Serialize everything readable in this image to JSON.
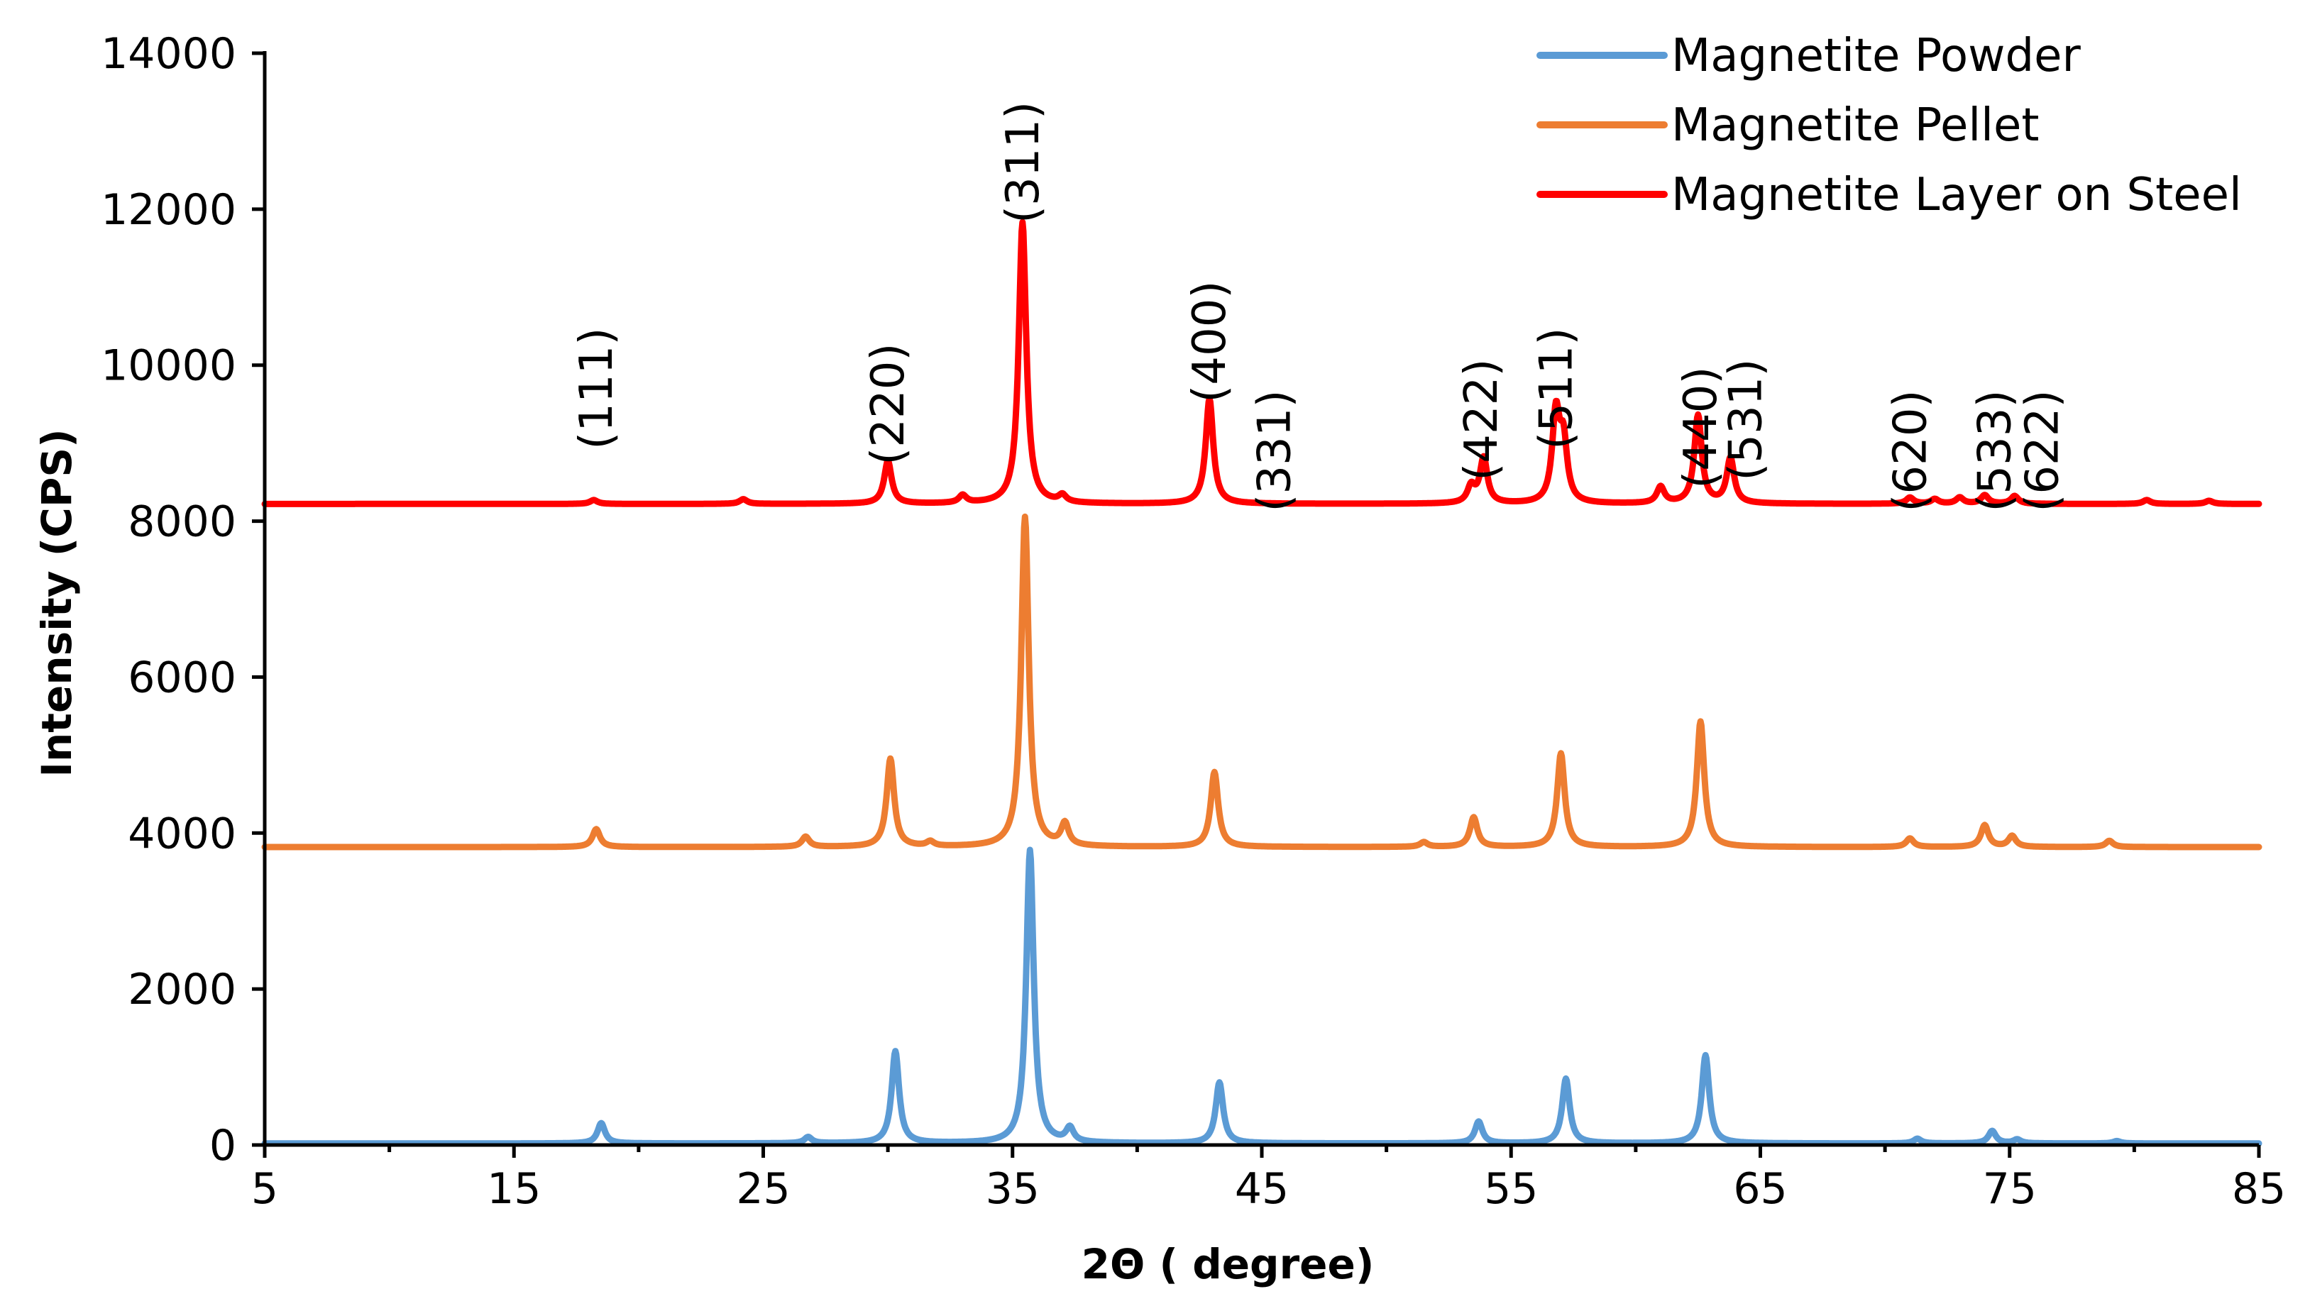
{
  "chart_data": {
    "type": "line",
    "title": "",
    "xlabel": "2Θ ( degree)",
    "ylabel": "Intensity (CPS)",
    "xlim": [
      5,
      85
    ],
    "ylim": [
      0,
      14000
    ],
    "xticks": [
      5,
      15,
      25,
      35,
      45,
      55,
      65,
      75,
      85
    ],
    "xtick_labels": [
      "5",
      "15",
      "25",
      "35",
      "45",
      "55",
      "65",
      "75",
      "85"
    ],
    "yticks": [
      0,
      2000,
      4000,
      6000,
      8000,
      10000,
      12000,
      14000
    ],
    "ytick_labels": [
      "0",
      "2000",
      "4000",
      "6000",
      "8000",
      "10000",
      "12000",
      "14000"
    ],
    "grid": false,
    "legend_position": "top-right",
    "series": [
      {
        "name": "Magnetite Powder",
        "color": "#5b9bd5",
        "baseline": 20,
        "peaks": [
          {
            "x": 18.5,
            "y": 280
          },
          {
            "x": 26.8,
            "y": 100
          },
          {
            "x": 30.3,
            "y": 1200
          },
          {
            "x": 35.7,
            "y": 3780
          },
          {
            "x": 37.3,
            "y": 200
          },
          {
            "x": 43.3,
            "y": 800
          },
          {
            "x": 53.7,
            "y": 300
          },
          {
            "x": 57.2,
            "y": 850
          },
          {
            "x": 62.8,
            "y": 1150
          },
          {
            "x": 71.3,
            "y": 80
          },
          {
            "x": 74.3,
            "y": 180
          },
          {
            "x": 75.3,
            "y": 70
          },
          {
            "x": 79.3,
            "y": 50
          }
        ]
      },
      {
        "name": "Magnetite Pellet",
        "color": "#ed7d31",
        "baseline": 3820,
        "peaks": [
          {
            "x": 18.3,
            "y": 4050
          },
          {
            "x": 26.7,
            "y": 3950
          },
          {
            "x": 30.1,
            "y": 4950
          },
          {
            "x": 31.7,
            "y": 3880
          },
          {
            "x": 35.5,
            "y": 8050
          },
          {
            "x": 37.1,
            "y": 4100
          },
          {
            "x": 43.1,
            "y": 4780
          },
          {
            "x": 51.5,
            "y": 3880
          },
          {
            "x": 53.5,
            "y": 4200
          },
          {
            "x": 57.0,
            "y": 5020
          },
          {
            "x": 62.6,
            "y": 5430
          },
          {
            "x": 71.0,
            "y": 3930
          },
          {
            "x": 74.0,
            "y": 4100
          },
          {
            "x": 75.1,
            "y": 3960
          },
          {
            "x": 79.0,
            "y": 3900
          }
        ]
      },
      {
        "name": "Magnetite Layer on Steel",
        "color": "#ff0000",
        "baseline": 8220,
        "peaks": [
          {
            "x": 18.2,
            "y": 8270
          },
          {
            "x": 24.2,
            "y": 8280
          },
          {
            "x": 30.0,
            "y": 8770
          },
          {
            "x": 33.0,
            "y": 8320
          },
          {
            "x": 35.4,
            "y": 11830
          },
          {
            "x": 37.0,
            "y": 8310
          },
          {
            "x": 42.9,
            "y": 9570
          },
          {
            "x": 53.4,
            "y": 8430
          },
          {
            "x": 53.9,
            "y": 8800
          },
          {
            "x": 56.8,
            "y": 9340
          },
          {
            "x": 57.1,
            "y": 8960
          },
          {
            "x": 61.0,
            "y": 8430
          },
          {
            "x": 62.5,
            "y": 9350
          },
          {
            "x": 63.8,
            "y": 8800
          },
          {
            "x": 71.0,
            "y": 8300
          },
          {
            "x": 72.0,
            "y": 8280
          },
          {
            "x": 73.0,
            "y": 8300
          },
          {
            "x": 74.0,
            "y": 8330
          },
          {
            "x": 75.2,
            "y": 8320
          },
          {
            "x": 80.5,
            "y": 8270
          },
          {
            "x": 83.0,
            "y": 8260
          }
        ]
      }
    ],
    "annotations": [
      {
        "text": "(111)",
        "x": 18.3,
        "y": 9700
      },
      {
        "text": "(220)",
        "x": 30.0,
        "y": 9500
      },
      {
        "text": "(311)",
        "x": 35.4,
        "y": 12600
      },
      {
        "text": "(400)",
        "x": 42.9,
        "y": 10300
      },
      {
        "text": "(331)",
        "x": 45.5,
        "y": 8900
      },
      {
        "text": "(422)",
        "x": 53.8,
        "y": 9300
      },
      {
        "text": "(511)",
        "x": 56.8,
        "y": 9700
      },
      {
        "text": "(440)",
        "x": 62.6,
        "y": 9200
      },
      {
        "text": "(531)",
        "x": 64.4,
        "y": 9300
      },
      {
        "text": "(620)",
        "x": 71.0,
        "y": 8900
      },
      {
        "text": "(533)",
        "x": 74.4,
        "y": 8900
      },
      {
        "text": "(622)",
        "x": 76.3,
        "y": 8900
      }
    ]
  }
}
